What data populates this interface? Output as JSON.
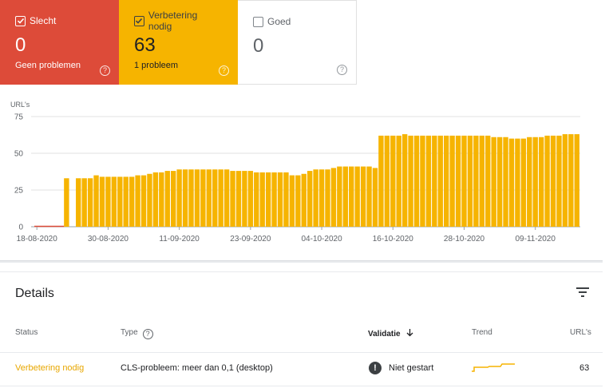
{
  "summary": {
    "bad": {
      "label": "Slecht",
      "count": "0",
      "sub": "Geen problemen",
      "checked": true,
      "color": "#dd4b39"
    },
    "improve": {
      "label": "Verbetering nodig",
      "count": "63",
      "sub": "1 probleem",
      "checked": true,
      "color": "#f6b400"
    },
    "good": {
      "label": "Goed",
      "count": "0",
      "sub": "",
      "checked": false
    }
  },
  "chart_data": {
    "type": "bar",
    "ylabel": "URL's",
    "yticks": [
      "0",
      "25",
      "50",
      "75"
    ],
    "ylim": [
      0,
      75
    ],
    "grid": true,
    "xtick_labels": [
      "18-08-2020",
      "30-08-2020",
      "11-09-2020",
      "23-09-2020",
      "04-10-2020",
      "16-10-2020",
      "28-10-2020",
      "09-11-2020"
    ],
    "x_start": "18-08-2020",
    "series": [
      {
        "color": "#f6b400",
        "values": [
          0,
          0,
          0,
          0,
          0,
          33,
          0,
          33,
          33,
          33,
          35,
          34,
          34,
          34,
          34,
          34,
          34,
          35,
          35,
          36,
          37,
          37,
          38,
          38,
          39,
          39,
          39,
          39,
          39,
          39,
          39,
          39,
          39,
          38,
          38,
          38,
          38,
          37,
          37,
          37,
          37,
          37,
          37,
          35,
          35,
          36,
          38,
          39,
          39,
          39,
          40,
          41,
          41,
          41,
          41,
          41,
          41,
          40,
          62,
          62,
          62,
          62,
          63,
          62,
          62,
          62,
          62,
          62,
          62,
          62,
          62,
          62,
          62,
          62,
          62,
          62,
          62,
          61,
          61,
          61,
          60,
          60,
          60,
          61,
          61,
          61,
          62,
          62,
          62,
          63,
          63,
          63
        ]
      },
      {
        "color": "#dd4b39",
        "values": [
          0,
          0,
          0,
          0,
          0,
          0,
          0,
          0,
          0,
          0,
          0,
          0,
          0,
          0,
          0,
          0,
          0,
          0,
          0,
          0,
          0,
          0,
          0,
          0,
          0,
          0,
          0,
          0,
          0,
          0,
          0,
          0,
          0,
          0,
          0,
          0,
          0,
          0,
          0,
          0,
          0,
          0,
          0,
          0,
          0,
          0,
          0,
          0,
          0,
          0,
          0,
          0,
          0,
          0,
          0,
          0,
          0,
          0,
          0,
          0,
          0,
          0,
          0,
          0,
          0,
          0,
          0,
          0,
          0,
          0,
          0,
          0,
          0,
          0,
          0,
          0,
          0,
          0,
          0,
          0,
          0,
          0,
          0,
          0,
          0,
          0,
          0,
          0,
          0,
          0,
          0,
          0
        ]
      }
    ]
  },
  "details": {
    "title": "Details",
    "columns": {
      "status": "Status",
      "type": "Type",
      "validation": "Validatie",
      "trend": "Trend",
      "urls": "URL's"
    },
    "rows": [
      {
        "status": "Verbetering nodig",
        "type": "CLS-probleem: meer dan 0,1 (desktop)",
        "validation": "Niet gestart",
        "urls": "63"
      }
    ]
  },
  "icons": {
    "help": "?",
    "filter": "filter-icon",
    "sort": "arrow-down-icon",
    "info": "!"
  }
}
